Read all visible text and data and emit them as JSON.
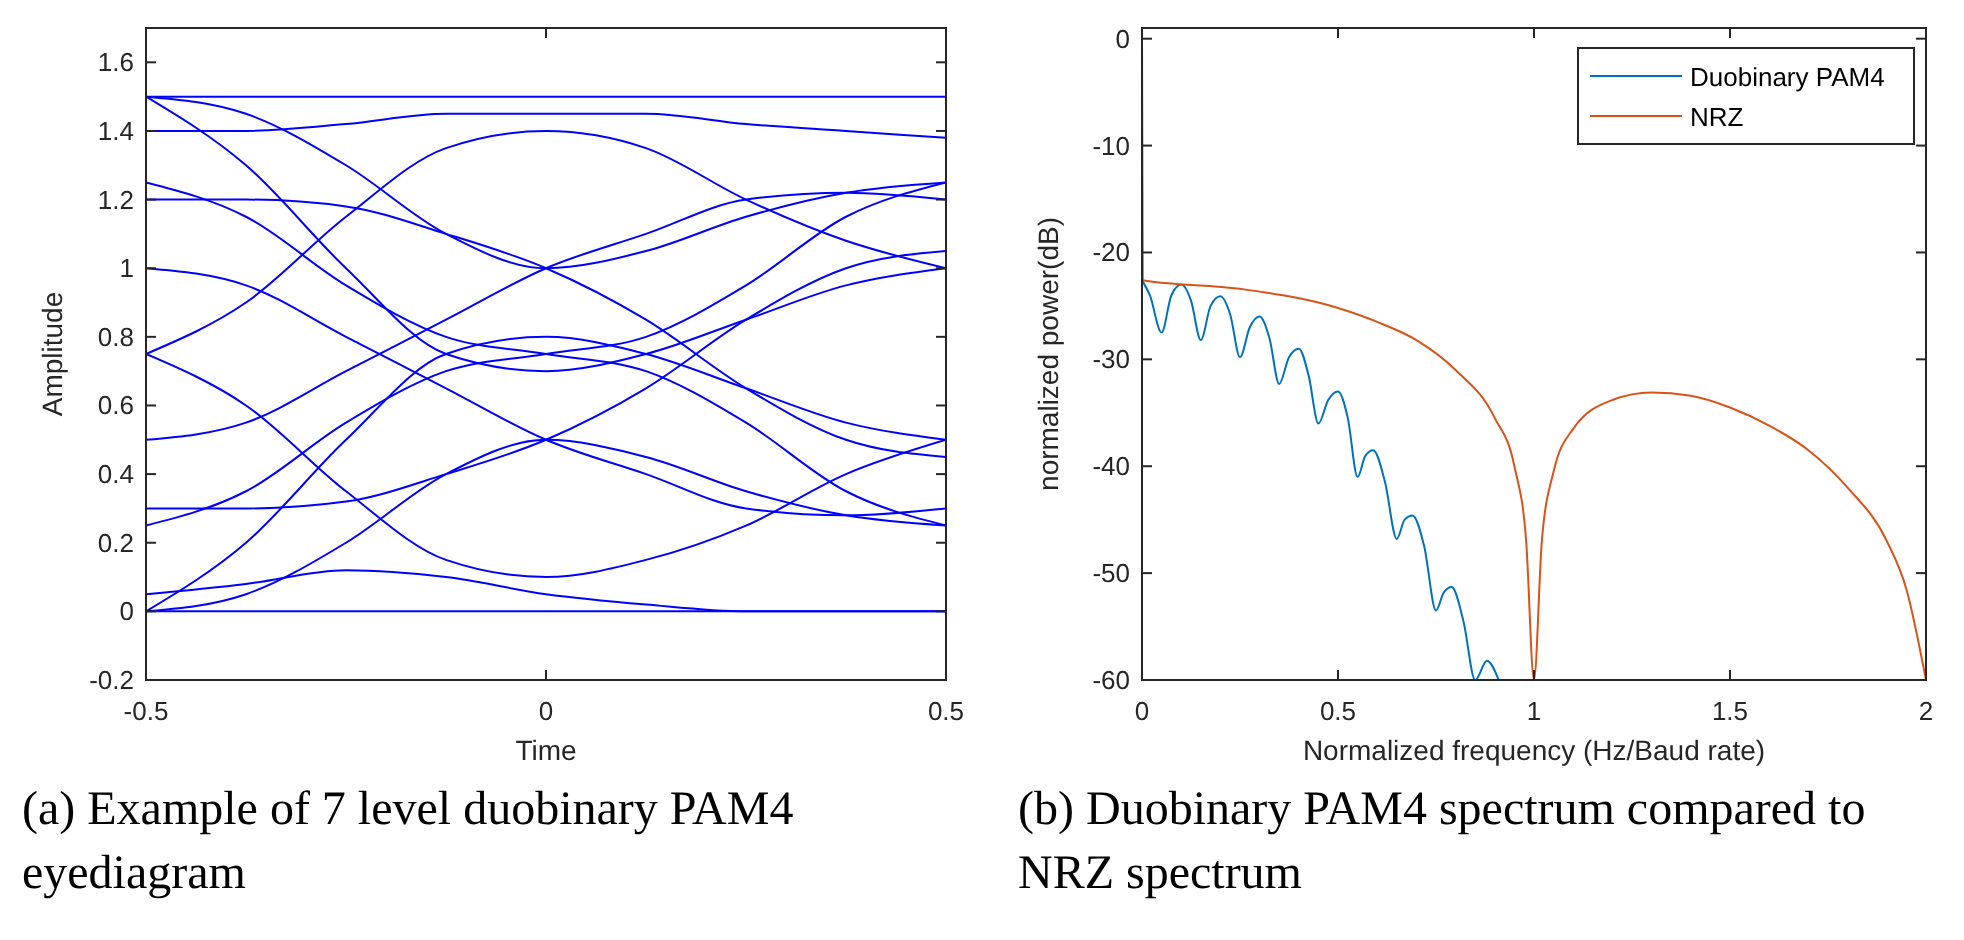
{
  "chart_data": [
    {
      "type": "line",
      "title": "(a) Example of 7 level duobinary PAM4 eyediagram",
      "xlabel": "Time",
      "ylabel": "Amplitude",
      "xlim": [
        -0.5,
        0.5
      ],
      "xticks": [
        -0.5,
        0,
        0.5
      ],
      "ylim": [
        -0.2,
        1.7
      ],
      "yticks": [
        -0.2,
        0,
        0.2,
        0.4,
        0.6,
        0.8,
        1,
        1.2,
        1.4,
        1.6
      ],
      "grid": false,
      "line_style": "solid",
      "marker": "none",
      "x": [
        -0.5,
        -0.375,
        -0.25,
        -0.125,
        0,
        0.125,
        0.25,
        0.375,
        0.5
      ],
      "series": [
        {
          "color": "#0000ff",
          "values": [
            1.5,
            1.5,
            1.5,
            1.5,
            1.5,
            1.5,
            1.5,
            1.5,
            1.5
          ]
        },
        {
          "color": "#0000ff",
          "values": [
            0,
            0,
            0,
            0,
            0,
            0,
            0,
            0,
            0
          ]
        },
        {
          "color": "#0000ff",
          "values": [
            1.5,
            1.45,
            1.3,
            1.1,
            1.0,
            1.05,
            1.15,
            1.22,
            1.25
          ]
        },
        {
          "color": "#0000ff",
          "values": [
            0,
            0.05,
            0.2,
            0.4,
            0.5,
            0.45,
            0.35,
            0.28,
            0.25
          ]
        },
        {
          "color": "#0000ff",
          "values": [
            0,
            0.2,
            0.5,
            0.75,
            0.8,
            0.75,
            0.65,
            0.55,
            0.5
          ]
        },
        {
          "color": "#0000ff",
          "values": [
            1.5,
            1.3,
            1.0,
            0.75,
            0.7,
            0.75,
            0.85,
            0.95,
            1.0
          ]
        },
        {
          "color": "#0000ff",
          "values": [
            0.25,
            0.35,
            0.55,
            0.7,
            0.75,
            0.8,
            0.95,
            1.15,
            1.25
          ]
        },
        {
          "color": "#0000ff",
          "values": [
            1.25,
            1.15,
            0.95,
            0.8,
            0.75,
            0.7,
            0.55,
            0.35,
            0.25
          ]
        },
        {
          "color": "#0000ff",
          "values": [
            0.5,
            0.55,
            0.7,
            0.85,
            1.0,
            1.1,
            1.2,
            1.22,
            1.2
          ]
        },
        {
          "color": "#0000ff",
          "values": [
            1.0,
            0.95,
            0.8,
            0.65,
            0.5,
            0.4,
            0.3,
            0.28,
            0.3
          ]
        },
        {
          "color": "#0000ff",
          "values": [
            0.75,
            0.6,
            0.35,
            0.15,
            0.1,
            0.15,
            0.25,
            0.4,
            0.5
          ]
        },
        {
          "color": "#0000ff",
          "values": [
            0.75,
            0.9,
            1.15,
            1.35,
            1.4,
            1.35,
            1.2,
            1.08,
            1.0
          ]
        },
        {
          "color": "#0000ff",
          "values": [
            0.3,
            0.3,
            0.32,
            0.4,
            0.5,
            0.65,
            0.85,
            1.0,
            1.05
          ]
        },
        {
          "color": "#0000ff",
          "values": [
            1.2,
            1.2,
            1.18,
            1.1,
            1.0,
            0.85,
            0.65,
            0.5,
            0.45
          ]
        },
        {
          "color": "#0000ff",
          "values": [
            1.4,
            1.4,
            1.42,
            1.45,
            1.45,
            1.45,
            1.42,
            1.4,
            1.38
          ]
        },
        {
          "color": "#0000ff",
          "values": [
            0.05,
            0.08,
            0.12,
            0.1,
            0.05,
            0.02,
            0,
            0,
            0
          ]
        }
      ]
    },
    {
      "type": "line",
      "title": "(b) Duobinary PAM4 spectrum compared to NRZ spectrum",
      "xlabel": "Normalized frequency (Hz/Baud rate)",
      "ylabel": "normalized power(dB)",
      "xlim": [
        0,
        2
      ],
      "xticks": [
        0,
        0.5,
        1,
        1.5,
        2
      ],
      "ylim": [
        -60,
        1
      ],
      "yticks": [
        -60,
        -50,
        -40,
        -30,
        -20,
        -10,
        0
      ],
      "grid": false,
      "legend": "top right",
      "line_style": "solid",
      "marker": "none",
      "series": [
        {
          "name": "Duobinary PAM4",
          "color": "#0072bd",
          "x": [
            0,
            0.02,
            0.05,
            0.075,
            0.1,
            0.125,
            0.15,
            0.175,
            0.2,
            0.225,
            0.25,
            0.275,
            0.3,
            0.325,
            0.35,
            0.375,
            0.4,
            0.425,
            0.45,
            0.475,
            0.5,
            0.525,
            0.55,
            0.57,
            0.59,
            0.62,
            0.65,
            0.67,
            0.69,
            0.72,
            0.75,
            0.77,
            0.79,
            0.82,
            0.85,
            0.88,
            0.91
          ],
          "values": [
            -22.6,
            -24,
            -27.5,
            -24,
            -23,
            -24.5,
            -28.2,
            -25,
            -24.1,
            -25.8,
            -29.8,
            -27,
            -26,
            -28,
            -32.3,
            -29.8,
            -29,
            -31.5,
            -36,
            -33.8,
            -33,
            -35.5,
            -41,
            -39,
            -38.5,
            -41.5,
            -46.8,
            -45,
            -44.6,
            -47.5,
            -53.5,
            -51.8,
            -51.3,
            -54.5,
            -60,
            -58.2,
            -60
          ]
        },
        {
          "name": "NRZ",
          "color": "#d95319",
          "x": [
            0,
            0.002,
            0.25,
            0.5,
            0.6,
            0.7,
            0.8,
            0.9,
            0.95,
            0.98,
            1.0,
            1.02,
            1.05,
            1.1,
            1.2,
            1.3,
            1.4,
            1.5,
            1.6,
            1.7,
            1.8,
            1.9,
            1.95,
            2.0
          ],
          "values": [
            0,
            -22.6,
            -23.4,
            -25.2,
            -26.5,
            -28.2,
            -31,
            -35.5,
            -40,
            -47,
            -60,
            -47,
            -40.5,
            -36.5,
            -33.8,
            -33.1,
            -33.4,
            -34.5,
            -36.2,
            -38.5,
            -42,
            -47,
            -51.5,
            -60
          ]
        }
      ]
    }
  ]
}
